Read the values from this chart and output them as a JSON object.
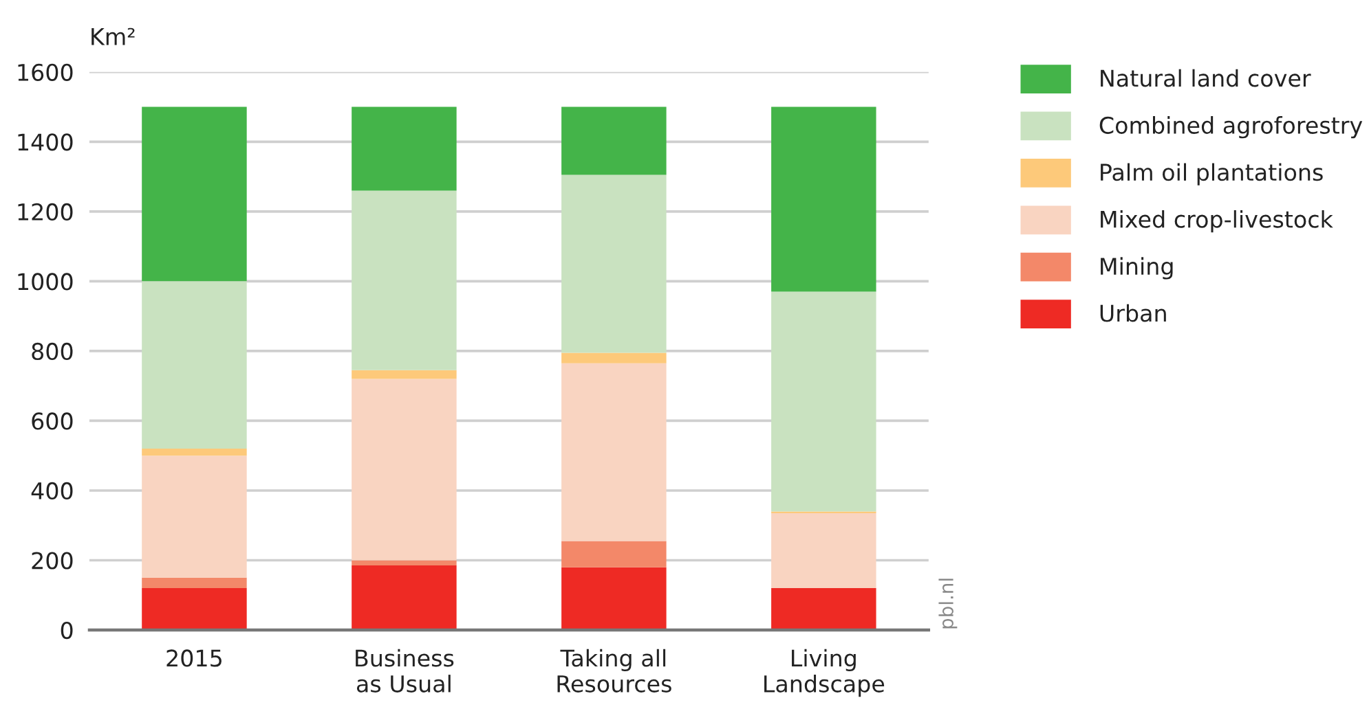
{
  "chart_data": {
    "type": "bar",
    "stacked": true,
    "ylabel": "Km²",
    "categories": [
      "2015",
      "Business\nas Usual",
      "Taking all\nResources",
      "Living\nLandscape"
    ],
    "series": [
      {
        "name": "Urban",
        "color": "#ee2a24",
        "values": [
          120,
          185,
          180,
          120
        ]
      },
      {
        "name": "Mining",
        "color": "#f38869",
        "values": [
          30,
          15,
          75,
          null
        ]
      },
      {
        "name": "Mixed crop-livestock",
        "color": "#f9d4c1",
        "values": [
          350,
          520,
          510,
          215
        ]
      },
      {
        "name": "Palm oil plantations",
        "color": "#fdc97a",
        "values": [
          20,
          25,
          30,
          5
        ]
      },
      {
        "name": "Combined agroforestry",
        "color": "#c9e2c0",
        "values": [
          480,
          515,
          510,
          630
        ]
      },
      {
        "name": "Natural land cover",
        "color": "#44b449",
        "values": [
          500,
          240,
          195,
          530
        ]
      }
    ],
    "ylim": [
      0,
      1600
    ],
    "yticks": [
      0,
      200,
      400,
      600,
      800,
      1000,
      1200,
      1400,
      1600
    ],
    "grid": "y",
    "legend": "right",
    "annotations": [
      "pbl.nl"
    ]
  }
}
